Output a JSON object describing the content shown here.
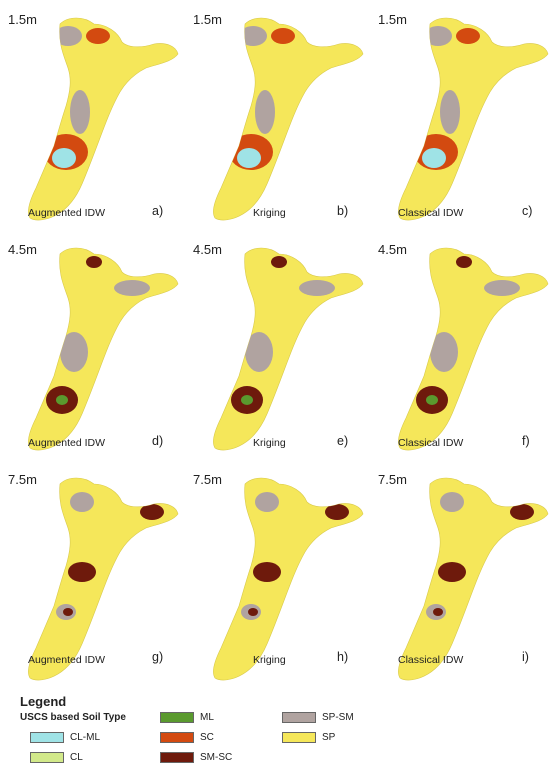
{
  "panels": [
    {
      "id": "a",
      "depth": "1.5m",
      "method": "Augmented IDW",
      "letter": "a)"
    },
    {
      "id": "b",
      "depth": "1.5m",
      "method": "Kriging",
      "letter": "b)"
    },
    {
      "id": "c",
      "depth": "1.5m",
      "method": "Classical IDW",
      "letter": "c)"
    },
    {
      "id": "d",
      "depth": "4.5m",
      "method": "Augmented IDW",
      "letter": "d)"
    },
    {
      "id": "e",
      "depth": "4.5m",
      "method": "Kriging",
      "letter": "e)"
    },
    {
      "id": "f",
      "depth": "4.5m",
      "method": "Classical IDW",
      "letter": "f)"
    },
    {
      "id": "g",
      "depth": "7.5m",
      "method": "Augmented IDW",
      "letter": "g)"
    },
    {
      "id": "h",
      "depth": "7.5m",
      "method": "Kriging",
      "letter": "h)"
    },
    {
      "id": "i",
      "depth": "7.5m",
      "method": "Classical IDW",
      "letter": "i)"
    }
  ],
  "legend": {
    "title": "Legend",
    "subtitle": "USCS based Soil Type",
    "items": [
      {
        "label": "CL-ML",
        "color": "#9fe3e6"
      },
      {
        "label": "CL",
        "color": "#d2e98a"
      },
      {
        "label": "ML",
        "color": "#5a9a2e"
      },
      {
        "label": "SC",
        "color": "#d34a10"
      },
      {
        "label": "SM-SC",
        "color": "#6e1a0c"
      },
      {
        "label": "SP-SM",
        "color": "#b0a3a0"
      },
      {
        "label": "SP",
        "color": "#f5e75a"
      }
    ]
  }
}
